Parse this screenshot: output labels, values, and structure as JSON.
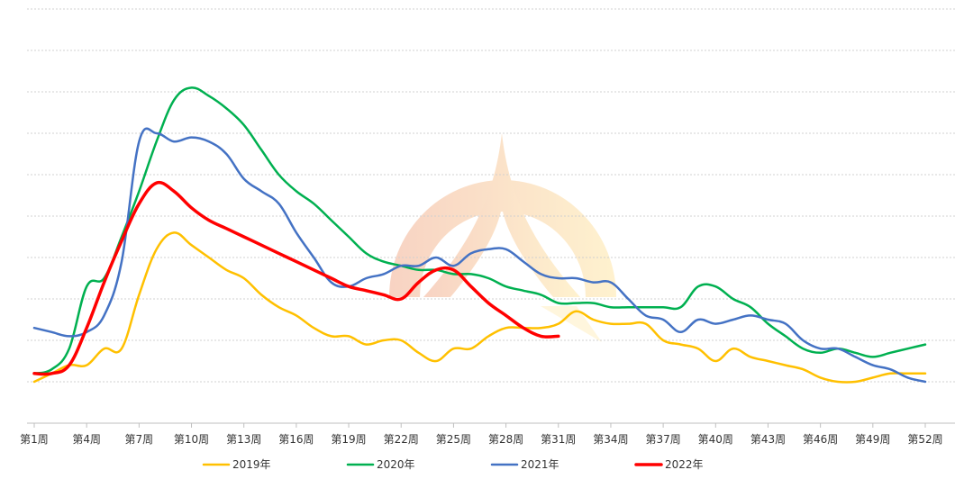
{
  "chart_data": {
    "type": "line",
    "title": "",
    "xlabel": "",
    "ylabel": "",
    "ylim": [
      0,
      10
    ],
    "grid": true,
    "legend_position": "bottom",
    "x": [
      1,
      2,
      3,
      4,
      5,
      6,
      7,
      8,
      9,
      10,
      11,
      12,
      13,
      14,
      15,
      16,
      17,
      18,
      19,
      20,
      21,
      22,
      23,
      24,
      25,
      26,
      27,
      28,
      29,
      30,
      31,
      32,
      33,
      34,
      35,
      36,
      37,
      38,
      39,
      40,
      41,
      42,
      43,
      44,
      45,
      46,
      47,
      48,
      49,
      50,
      51,
      52
    ],
    "x_tick_labels": [
      {
        "x": 1,
        "label": "第1周"
      },
      {
        "x": 4,
        "label": "第4周"
      },
      {
        "x": 7,
        "label": "第7周"
      },
      {
        "x": 10,
        "label": "第10周"
      },
      {
        "x": 13,
        "label": "第13周"
      },
      {
        "x": 16,
        "label": "第16周"
      },
      {
        "x": 19,
        "label": "第19周"
      },
      {
        "x": 22,
        "label": "第22周"
      },
      {
        "x": 25,
        "label": "第25周"
      },
      {
        "x": 28,
        "label": "第28周"
      },
      {
        "x": 31,
        "label": "第31周"
      },
      {
        "x": 34,
        "label": "第34周"
      },
      {
        "x": 37,
        "label": "第37周"
      },
      {
        "x": 40,
        "label": "第40周"
      },
      {
        "x": 43,
        "label": "第43周"
      },
      {
        "x": 46,
        "label": "第46周"
      },
      {
        "x": 49,
        "label": "第49周"
      },
      {
        "x": 52,
        "label": "第52周"
      }
    ],
    "series": [
      {
        "name": "2019年",
        "color": "#FFC000",
        "width": 2.5,
        "values": [
          1.0,
          1.2,
          1.4,
          1.4,
          1.8,
          1.8,
          3.1,
          4.2,
          4.6,
          4.3,
          4.0,
          3.7,
          3.5,
          3.1,
          2.8,
          2.6,
          2.3,
          2.1,
          2.1,
          1.9,
          2.0,
          2.0,
          1.7,
          1.5,
          1.8,
          1.8,
          2.1,
          2.3,
          2.3,
          2.3,
          2.4,
          2.7,
          2.5,
          2.4,
          2.4,
          2.4,
          2.0,
          1.9,
          1.8,
          1.5,
          1.8,
          1.6,
          1.5,
          1.4,
          1.3,
          1.1,
          1.0,
          1.0,
          1.1,
          1.2,
          1.2,
          1.2
        ]
      },
      {
        "name": "2020年",
        "color": "#00B050",
        "width": 2.5,
        "values": [
          1.2,
          1.3,
          1.8,
          3.3,
          3.5,
          4.5,
          5.6,
          6.8,
          7.8,
          8.1,
          7.9,
          7.6,
          7.2,
          6.6,
          6.0,
          5.6,
          5.3,
          4.9,
          4.5,
          4.1,
          3.9,
          3.8,
          3.7,
          3.7,
          3.6,
          3.6,
          3.5,
          3.3,
          3.2,
          3.1,
          2.9,
          2.9,
          2.9,
          2.8,
          2.8,
          2.8,
          2.8,
          2.8,
          3.3,
          3.3,
          3.0,
          2.8,
          2.4,
          2.1,
          1.8,
          1.7,
          1.8,
          1.7,
          1.6,
          1.7,
          1.8,
          1.9
        ]
      },
      {
        "name": "2021年",
        "color": "#4472C4",
        "width": 2.5,
        "values": [
          2.3,
          2.2,
          2.1,
          2.2,
          2.6,
          3.9,
          6.8,
          7.0,
          6.8,
          6.9,
          6.8,
          6.5,
          5.9,
          5.6,
          5.3,
          4.6,
          4.0,
          3.4,
          3.3,
          3.5,
          3.6,
          3.8,
          3.8,
          4.0,
          3.8,
          4.1,
          4.2,
          4.2,
          3.9,
          3.6,
          3.5,
          3.5,
          3.4,
          3.4,
          3.0,
          2.6,
          2.5,
          2.2,
          2.5,
          2.4,
          2.5,
          2.6,
          2.5,
          2.4,
          2.0,
          1.8,
          1.8,
          1.6,
          1.4,
          1.3,
          1.1,
          1.0
        ]
      },
      {
        "name": "2022年",
        "color": "#FF0000",
        "width": 3.5,
        "values": [
          1.2,
          1.2,
          1.4,
          2.3,
          3.4,
          4.4,
          5.3,
          5.8,
          5.6,
          5.2,
          4.9,
          4.7,
          4.5,
          4.3,
          4.1,
          3.9,
          3.7,
          3.5,
          3.3,
          3.2,
          3.1,
          3.0,
          3.4,
          3.7,
          3.7,
          3.3,
          2.9,
          2.6,
          2.3,
          2.1,
          2.1,
          null,
          null,
          null,
          null,
          null,
          null,
          null,
          null,
          null,
          null,
          null,
          null,
          null,
          null,
          null,
          null,
          null,
          null,
          null,
          null,
          null
        ]
      }
    ]
  }
}
